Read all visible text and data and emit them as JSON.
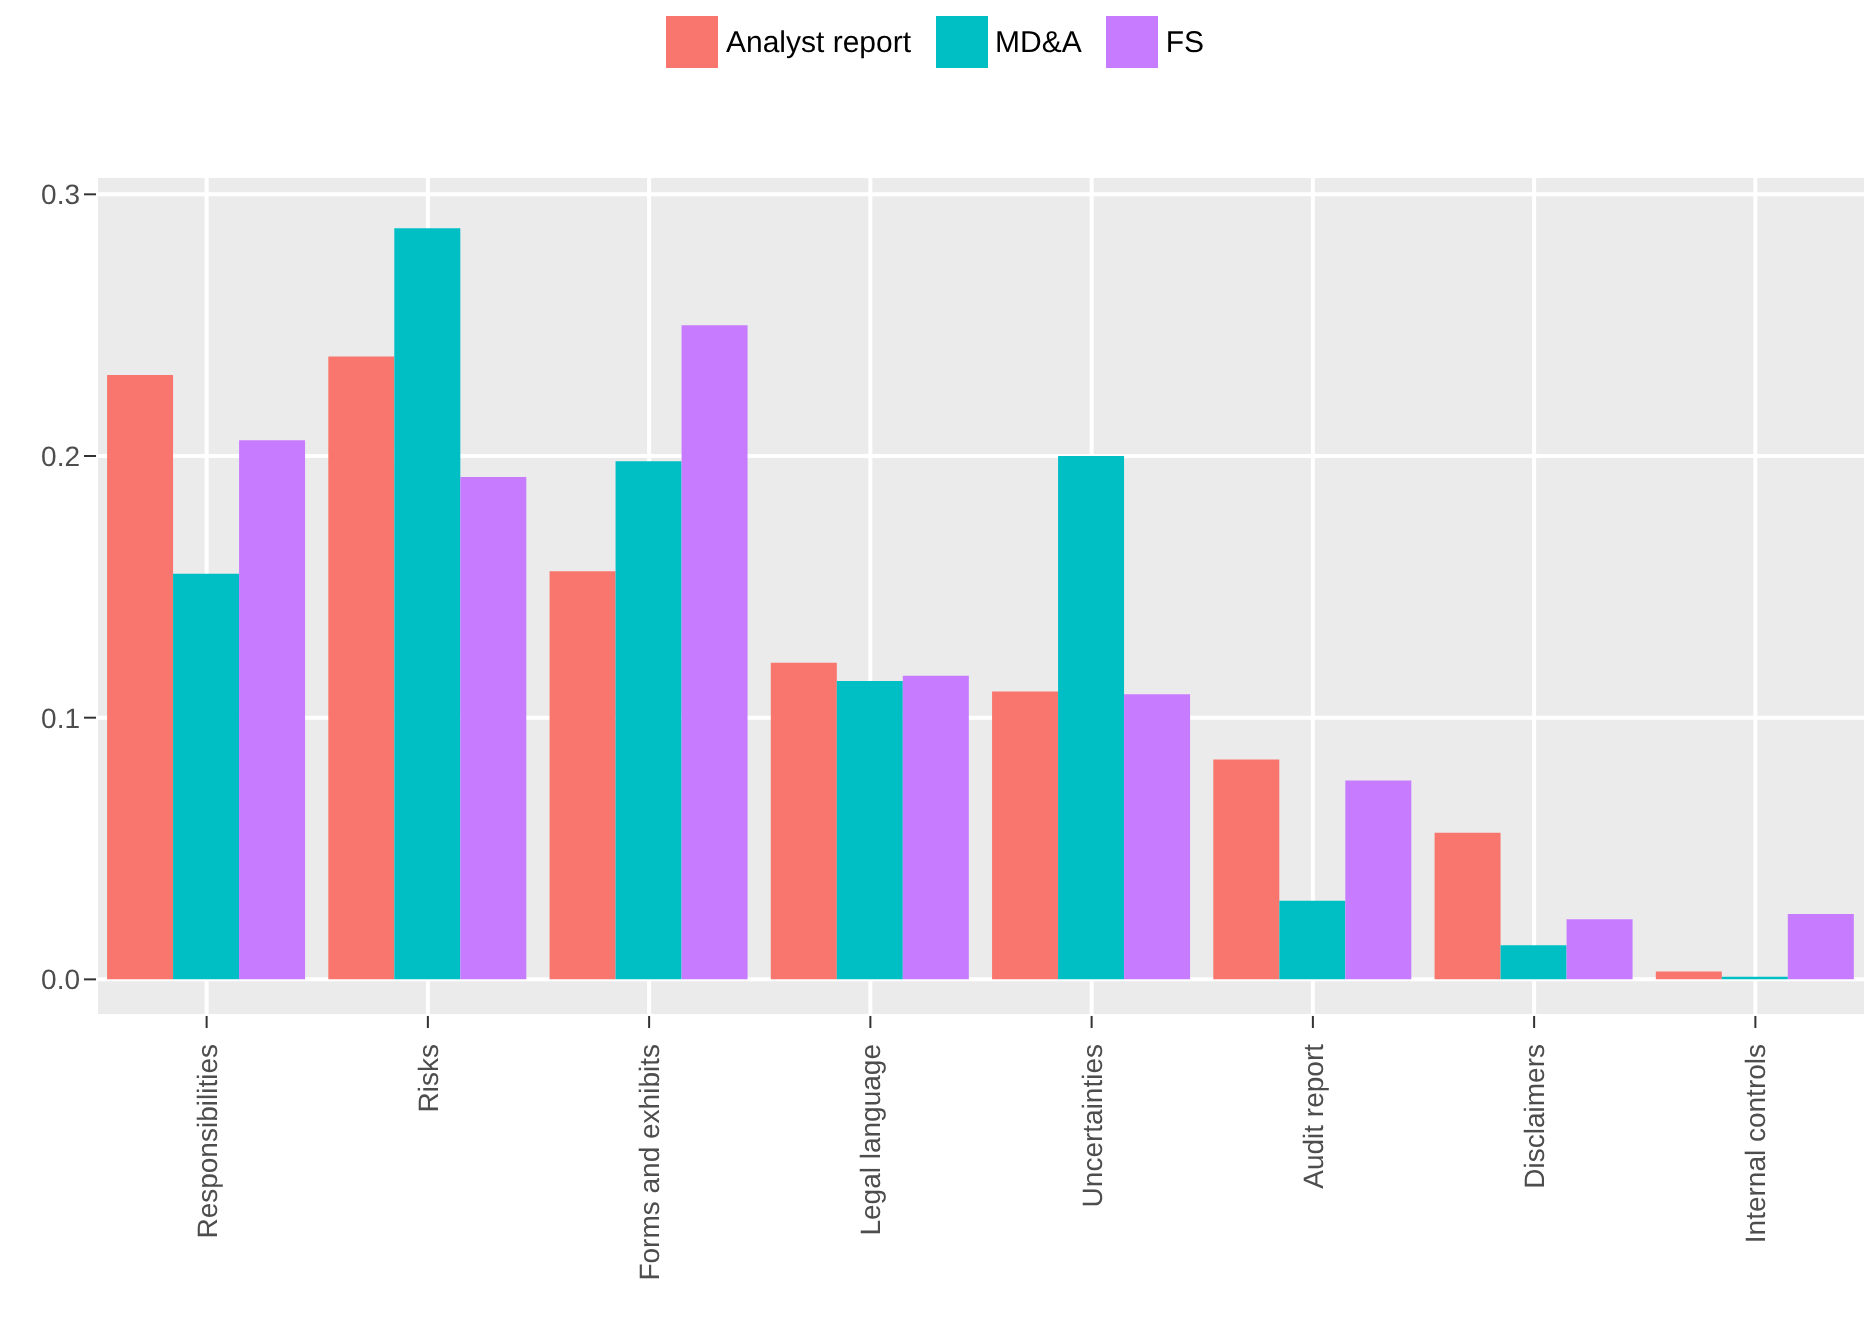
{
  "chart_data": {
    "type": "bar",
    "categories": [
      "Responsibilities",
      "Risks",
      "Forms and exhibits",
      "Legal language",
      "Uncertainties",
      "Audit report",
      "Disclaimers",
      "Internal controls"
    ],
    "series": [
      {
        "name": "Analyst report",
        "color": "#f8766d",
        "values": [
          0.231,
          0.238,
          0.156,
          0.121,
          0.11,
          0.084,
          0.056,
          0.003
        ]
      },
      {
        "name": "MD&A",
        "color": "#00bfc4",
        "values": [
          0.155,
          0.287,
          0.198,
          0.114,
          0.2,
          0.03,
          0.013,
          0.001
        ]
      },
      {
        "name": "FS",
        "color": "#c77cff",
        "values": [
          0.206,
          0.192,
          0.25,
          0.116,
          0.109,
          0.076,
          0.023,
          0.025
        ]
      }
    ],
    "ylim": [
      -0.014,
      0.307
    ],
    "yticks": [
      {
        "value": 0,
        "label": "0.0"
      },
      {
        "value": 0.1,
        "label": "0.1"
      },
      {
        "value": 0.2,
        "label": "0.2"
      },
      {
        "value": 0.3,
        "label": "0.3"
      }
    ],
    "grid": true,
    "legend": "top"
  }
}
